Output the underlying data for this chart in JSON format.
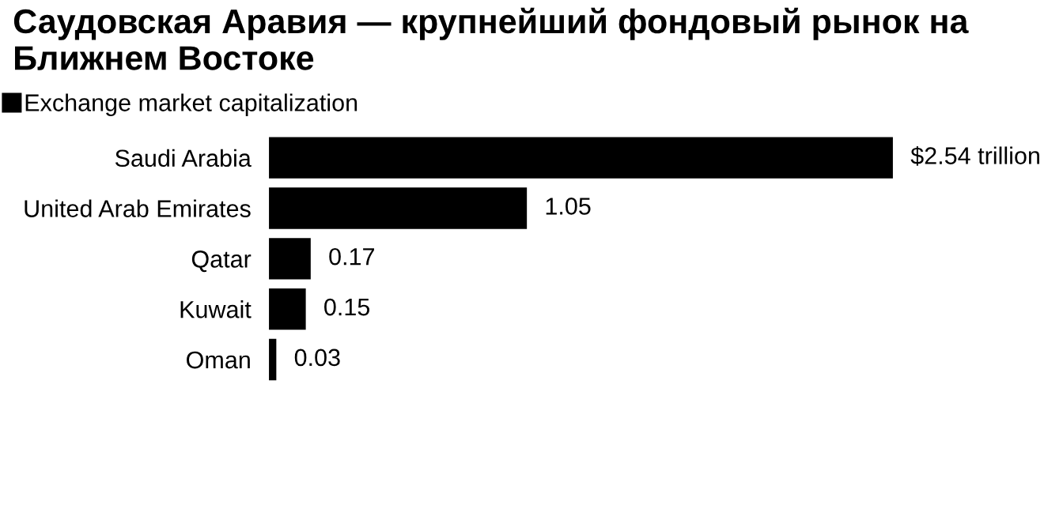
{
  "chart_data": {
    "type": "bar",
    "orientation": "horizontal",
    "title": "Саудовская Аравия — крупнейший фондовый рынок на Ближнем Востоке",
    "categories": [
      "Saudi Arabia",
      "United Arab Emirates",
      "Qatar",
      "Kuwait",
      "Oman"
    ],
    "series": [
      {
        "name": "Exchange market capitalization",
        "color": "#000000",
        "values": [
          2.54,
          1.05,
          0.17,
          0.15,
          0.03
        ],
        "value_labels": [
          "$2.54 trillion",
          "1.05",
          "0.17",
          "0.15",
          "0.03"
        ]
      }
    ],
    "relative": false,
    "grid": false,
    "legend": "top left"
  }
}
